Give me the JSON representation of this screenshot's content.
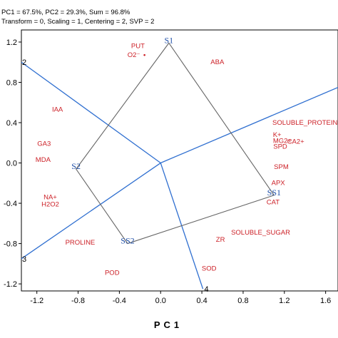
{
  "header": {
    "line1": "PC1 = 67.5%, PC2 = 29.3%, Sum = 96.8%",
    "line2": "Transform = 0, Scaling = 1, Centering = 2, SVP = 2"
  },
  "colors": {
    "variables": "#cc1f26",
    "environments": "#1f4fa8",
    "tester_lines": "#2f6fd0",
    "polygon": "#666666",
    "axes": "#000000"
  },
  "chart_data": {
    "type": "scatter",
    "title": "",
    "xlabel": "PC1",
    "ylabel": "",
    "xlim": [
      -1.35,
      1.72
    ],
    "ylim": [
      -1.27,
      1.32
    ],
    "x_ticks": [
      "-1.2",
      "-0.8",
      "-0.4",
      "0.0",
      "0.4",
      "0.8",
      "1.2",
      "1.6"
    ],
    "x_tick_values": [
      -1.2,
      -0.8,
      -0.4,
      0.0,
      0.4,
      0.8,
      1.2,
      1.6
    ],
    "y_ticks": [
      "1.2",
      "0.8",
      "0.4",
      "0.0",
      "-0.4",
      "-0.8",
      "-1.2"
    ],
    "y_tick_values": [
      1.2,
      0.8,
      0.4,
      0.0,
      -0.4,
      -0.8,
      -1.2
    ],
    "variables": [
      {
        "label": "PUT",
        "x": -0.22,
        "y": 1.14
      },
      {
        "label": "O2⁻",
        "x": -0.26,
        "y": 1.05,
        "marker": true
      },
      {
        "label": "ABA",
        "x": 0.55,
        "y": 0.98
      },
      {
        "label": "IAA",
        "x": -1.0,
        "y": 0.51
      },
      {
        "label": "SOLUBLE_PROTEIN",
        "x": 1.4,
        "y": 0.38
      },
      {
        "label": "K+",
        "x": 1.13,
        "y": 0.26
      },
      {
        "label": "MG2+",
        "x": 1.18,
        "y": 0.2
      },
      {
        "label": "CA2+",
        "x": 1.31,
        "y": 0.19
      },
      {
        "label": "SPD",
        "x": 1.16,
        "y": 0.14
      },
      {
        "label": "GA3",
        "x": -1.13,
        "y": 0.17
      },
      {
        "label": "MDA",
        "x": -1.14,
        "y": 0.01
      },
      {
        "label": "SPM",
        "x": 1.17,
        "y": -0.06
      },
      {
        "label": "APX",
        "x": 1.14,
        "y": -0.22
      },
      {
        "label": "NA+",
        "x": -1.07,
        "y": -0.36
      },
      {
        "label": "H2O2",
        "x": -1.07,
        "y": -0.43
      },
      {
        "label": "CAT",
        "x": 1.09,
        "y": -0.41
      },
      {
        "label": "SOLUBLE_SUGAR",
        "x": 0.97,
        "y": -0.71
      },
      {
        "label": "ZR",
        "x": 0.58,
        "y": -0.78
      },
      {
        "label": "PROLINE",
        "x": -0.78,
        "y": -0.81
      },
      {
        "label": "SOD",
        "x": 0.47,
        "y": -1.07
      },
      {
        "label": "POD",
        "x": -0.47,
        "y": -1.11
      }
    ],
    "environments": [
      {
        "label": "S1",
        "x": 0.08,
        "y": 1.19
      },
      {
        "label": "S2",
        "x": -0.82,
        "y": -0.06
      },
      {
        "label": "SS1",
        "x": 1.1,
        "y": -0.32
      },
      {
        "label": "SS2",
        "x": -0.32,
        "y": -0.8
      }
    ],
    "polygon_order": [
      "S1",
      "SS1",
      "SS2",
      "S2"
    ],
    "testers": [
      {
        "label": "2",
        "x": -1.35,
        "y": 1.0
      },
      {
        "label": "3",
        "x": -1.35,
        "y": -0.95
      },
      {
        "label": "4",
        "x": 0.41,
        "y": -1.25
      }
    ],
    "origin": {
      "x": 0.0,
      "y": 0.0
    },
    "tester_extension_to": {
      "x": 1.72,
      "y": 0.75
    }
  }
}
